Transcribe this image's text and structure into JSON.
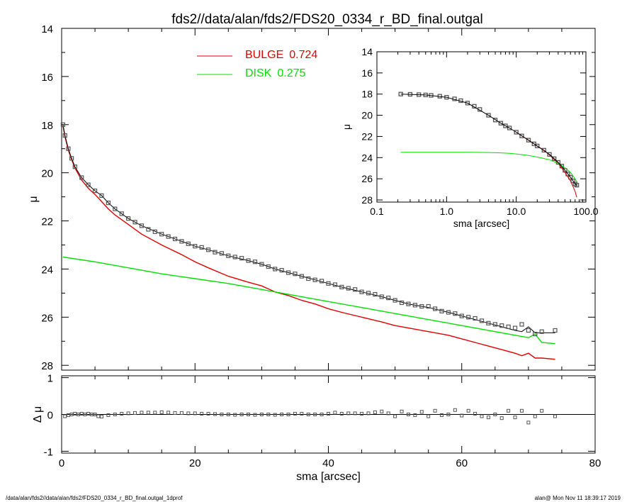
{
  "title": "fds2//data/alan/fds2/FDS20_0334_r_BD_final.outgal",
  "footer_left": "/data/alan/fds2//data/alan/fds2/FDS20_0334_r_BD_final.outgal_1dprof",
  "footer_right": "alan@  Mon Nov 11 18:39:17 2019",
  "colors": {
    "bulge": "#e00000",
    "disk": "#00e000",
    "total": "#000000",
    "data": "#555555",
    "zero_line": "#000000"
  },
  "chart_data": [
    {
      "type": "line",
      "name": "main-profile",
      "xlabel": "",
      "ylabel": "μ",
      "xlim": [
        0,
        80
      ],
      "ylim": [
        28.2,
        14
      ],
      "y_inverted": true,
      "y_ticks": [
        "14",
        "16",
        "18",
        "20",
        "22",
        "24",
        "26",
        "28"
      ],
      "x_ticks": [],
      "legend_position": "top-center",
      "legend": [
        {
          "label": "BULGE",
          "value": "0.724",
          "color": "#e00000"
        },
        {
          "label": "DISK",
          "value": "0.275",
          "color": "#00e000"
        }
      ],
      "series": [
        {
          "name": "BULGE",
          "color": "#e00000",
          "x": [
            0.2,
            0.5,
            1,
            1.5,
            2,
            3,
            4,
            5,
            6,
            7,
            8,
            10,
            12,
            15,
            18,
            20,
            22,
            25,
            28,
            30,
            32,
            34,
            36,
            38,
            40,
            42,
            45,
            48,
            50,
            52,
            55,
            58,
            60,
            62,
            64,
            66,
            68,
            69,
            70,
            71,
            72,
            74
          ],
          "y": [
            18.05,
            18.5,
            19.05,
            19.45,
            19.8,
            20.3,
            20.65,
            20.9,
            21.2,
            21.5,
            21.75,
            22.15,
            22.55,
            23.0,
            23.4,
            23.7,
            23.95,
            24.3,
            24.55,
            24.7,
            24.95,
            25.1,
            25.3,
            25.45,
            25.65,
            25.8,
            26.0,
            26.2,
            26.35,
            26.45,
            26.6,
            26.75,
            26.9,
            27.05,
            27.2,
            27.35,
            27.5,
            27.6,
            27.5,
            27.7,
            27.7,
            27.75
          ]
        },
        {
          "name": "DISK",
          "color": "#00e000",
          "x": [
            0.2,
            5,
            10,
            15,
            20,
            25,
            30,
            35,
            40,
            45,
            50,
            55,
            60,
            65,
            68,
            70,
            71,
            72,
            74
          ],
          "y": [
            23.5,
            23.7,
            23.95,
            24.2,
            24.4,
            24.6,
            24.85,
            25.1,
            25.35,
            25.6,
            25.85,
            26.1,
            26.35,
            26.6,
            26.75,
            26.85,
            26.7,
            27.05,
            27.1
          ]
        },
        {
          "name": "MODEL",
          "color": "#000000",
          "x": [
            0.2,
            0.5,
            1,
            1.5,
            2,
            3,
            4,
            5,
            6,
            7,
            8,
            10,
            12,
            15,
            18,
            20,
            22,
            25,
            28,
            30,
            32,
            34,
            36,
            38,
            40,
            42,
            45,
            48,
            50,
            52,
            55,
            58,
            60,
            62,
            64,
            66,
            68,
            69,
            70,
            71,
            72,
            74
          ],
          "y": [
            18.0,
            18.45,
            19.0,
            19.4,
            19.75,
            20.2,
            20.5,
            20.75,
            20.95,
            21.25,
            21.5,
            21.9,
            22.2,
            22.55,
            22.85,
            23.05,
            23.2,
            23.45,
            23.65,
            23.8,
            24.0,
            24.15,
            24.3,
            24.45,
            24.6,
            24.75,
            24.95,
            25.15,
            25.3,
            25.45,
            25.6,
            25.8,
            25.95,
            26.1,
            26.25,
            26.4,
            26.55,
            26.6,
            26.4,
            26.65,
            26.65,
            26.65
          ]
        },
        {
          "name": "DATA",
          "color": "#555555",
          "marker": "square",
          "x": [
            0.2,
            0.5,
            1,
            1.5,
            2,
            3,
            4,
            5,
            6,
            7,
            8,
            9,
            10,
            11,
            12,
            13,
            14,
            15,
            16,
            17,
            18,
            19,
            20,
            21,
            22,
            23,
            24,
            25,
            26,
            27,
            28,
            29,
            30,
            31,
            32,
            33,
            34,
            35,
            36,
            37,
            38,
            39,
            40,
            41,
            42,
            43,
            44,
            45,
            46,
            47,
            48,
            49,
            50,
            51,
            52,
            53,
            54,
            55,
            56,
            57,
            58,
            59,
            60,
            61,
            62,
            63,
            64,
            65,
            66,
            67,
            68,
            69,
            70,
            71,
            72,
            74
          ],
          "y": [
            18.0,
            18.45,
            19.0,
            19.4,
            19.75,
            20.2,
            20.5,
            20.75,
            20.95,
            21.25,
            21.5,
            21.7,
            21.9,
            22.05,
            22.2,
            22.35,
            22.45,
            22.55,
            22.65,
            22.75,
            22.85,
            22.95,
            23.05,
            23.1,
            23.2,
            23.3,
            23.35,
            23.45,
            23.5,
            23.55,
            23.65,
            23.7,
            23.8,
            23.9,
            24.0,
            24.05,
            24.15,
            24.2,
            24.3,
            24.4,
            24.45,
            24.5,
            24.6,
            24.65,
            24.75,
            24.8,
            24.85,
            24.95,
            25.0,
            25.05,
            25.15,
            25.2,
            25.3,
            25.4,
            25.45,
            25.5,
            25.55,
            25.55,
            25.65,
            25.75,
            25.8,
            25.85,
            25.95,
            26.0,
            26.05,
            26.15,
            26.25,
            26.3,
            26.35,
            26.4,
            26.45,
            26.3,
            26.55,
            26.7,
            26.6,
            26.55
          ]
        }
      ]
    },
    {
      "type": "scatter",
      "name": "residuals",
      "xlabel": "sma [arcsec]",
      "ylabel": "Δ μ",
      "xlim": [
        0,
        80
      ],
      "ylim": [
        -1.05,
        1.05
      ],
      "x_ticks": [
        "0",
        "20",
        "40",
        "60",
        "80"
      ],
      "y_ticks": [
        "-1",
        "0",
        "1"
      ],
      "zero_line": true,
      "series": [
        {
          "name": "residual",
          "color": "#555555",
          "marker": "square",
          "x": [
            0.5,
            1,
            1.5,
            2,
            2.5,
            3,
            3.5,
            4,
            4.5,
            5,
            5.5,
            6,
            7,
            8,
            9,
            10,
            11,
            12,
            13,
            14,
            15,
            16,
            17,
            18,
            19,
            20,
            21,
            22,
            23,
            24,
            25,
            26,
            27,
            28,
            29,
            30,
            31,
            32,
            33,
            34,
            35,
            36,
            37,
            38,
            39,
            40,
            41,
            42,
            43,
            44,
            45,
            46,
            47,
            48,
            49,
            50,
            51,
            52,
            53,
            54,
            55,
            56,
            57,
            58,
            59,
            60,
            61,
            62,
            63,
            64,
            65,
            66,
            67,
            68,
            69,
            70,
            71,
            72,
            74
          ],
          "y": [
            -0.05,
            -0.02,
            0.0,
            0.02,
            0.0,
            0.02,
            0.0,
            0.02,
            0.0,
            0.0,
            -0.05,
            -0.06,
            -0.02,
            0.0,
            0.02,
            0.03,
            0.04,
            0.05,
            0.05,
            0.05,
            0.06,
            0.05,
            0.04,
            0.04,
            0.03,
            0.03,
            0.02,
            0.02,
            0.01,
            0.0,
            0.0,
            -0.01,
            0.0,
            0.0,
            -0.01,
            0.0,
            0.0,
            -0.01,
            0.0,
            0.0,
            0.02,
            0.02,
            0.0,
            0.0,
            0.0,
            0.02,
            0.05,
            0.02,
            0.03,
            0.03,
            0.02,
            0.03,
            0.06,
            0.08,
            0.03,
            -0.05,
            0.08,
            0.0,
            -0.02,
            0.07,
            -0.05,
            0.1,
            -0.02,
            0.0,
            0.12,
            -0.03,
            0.1,
            0.02,
            -0.05,
            -0.08,
            0.0,
            -0.1,
            0.1,
            -0.08,
            0.1,
            -0.22,
            -0.05,
            0.1,
            -0.05
          ]
        }
      ]
    },
    {
      "type": "line",
      "name": "inset-log-profile",
      "xlabel": "sma [arcsec]",
      "ylabel": "μ",
      "x_scale": "log",
      "xlim": [
        0.1,
        100
      ],
      "ylim": [
        28.2,
        14
      ],
      "y_inverted": true,
      "x_ticks": [
        "0.1",
        "1.0",
        "10.0",
        "100.0"
      ],
      "y_ticks": [
        "14",
        "16",
        "18",
        "20",
        "22",
        "24",
        "26",
        "28"
      ],
      "series": [
        {
          "name": "DATA",
          "color": "#555555",
          "marker": "square",
          "x": [
            0.22,
            0.3,
            0.4,
            0.5,
            0.6,
            0.8,
            1.0,
            1.3,
            1.6,
            2.0,
            2.5,
            3.0,
            4.0,
            5.0,
            6.0,
            7.0,
            8.0,
            10,
            12,
            15,
            18,
            20,
            25,
            30,
            35,
            40,
            45,
            50,
            55,
            60,
            65,
            70,
            74
          ],
          "y": [
            18.0,
            18.02,
            18.05,
            18.08,
            18.12,
            18.2,
            18.3,
            18.45,
            18.62,
            18.85,
            19.15,
            19.45,
            20.0,
            20.45,
            20.75,
            21.0,
            21.2,
            21.6,
            21.95,
            22.35,
            22.7,
            22.9,
            23.3,
            23.7,
            24.1,
            24.45,
            24.8,
            25.2,
            25.55,
            25.85,
            26.2,
            26.5,
            26.6
          ]
        },
        {
          "name": "BULGE",
          "color": "#e00000",
          "x": [
            10,
            15,
            20,
            25,
            30,
            40,
            50,
            60,
            70,
            74
          ],
          "y": [
            21.6,
            22.35,
            22.9,
            23.3,
            23.75,
            24.55,
            25.4,
            26.2,
            27.2,
            27.75
          ]
        },
        {
          "name": "DISK",
          "color": "#00e000",
          "x": [
            0.22,
            0.5,
            1,
            2,
            4,
            6,
            8,
            10,
            15,
            20,
            30,
            40,
            50,
            60,
            70,
            74
          ],
          "y": [
            23.5,
            23.5,
            23.5,
            23.5,
            23.52,
            23.55,
            23.6,
            23.65,
            23.8,
            23.95,
            24.2,
            24.55,
            24.95,
            25.4,
            26.0,
            26.3
          ]
        },
        {
          "name": "MODEL",
          "color": "#000000",
          "x": [
            0.22,
            0.5,
            1,
            2,
            4,
            6,
            8,
            10,
            15,
            20,
            30,
            40,
            50,
            60,
            70,
            74
          ],
          "y": [
            18.0,
            18.08,
            18.3,
            18.85,
            20.0,
            20.75,
            21.2,
            21.6,
            22.35,
            22.9,
            23.7,
            24.45,
            25.2,
            25.85,
            26.5,
            26.6
          ]
        }
      ]
    }
  ]
}
